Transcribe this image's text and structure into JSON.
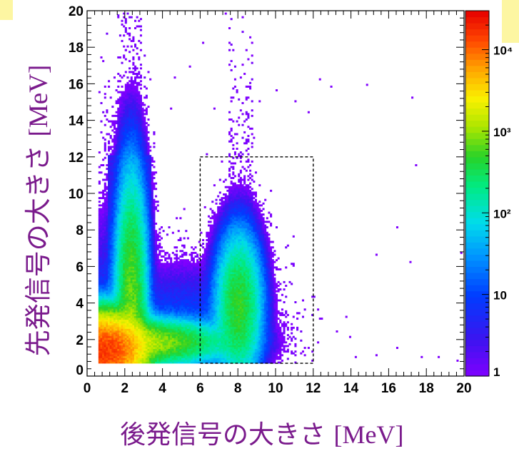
{
  "chart_data": {
    "type": "heatmap",
    "title": "",
    "xlabel_main": "後発信号の大きさ",
    "xlabel_unit": "[MeV]",
    "ylabel_main": "先発信号の大きさ",
    "ylabel_unit": "[MeV]",
    "xlim": [
      0,
      20
    ],
    "ylim": [
      0,
      20
    ],
    "x_ticks": [
      "0",
      "2",
      "4",
      "6",
      "8",
      "10",
      "12",
      "14",
      "16",
      "18",
      "20"
    ],
    "y_ticks": [
      "0",
      "2",
      "4",
      "6",
      "8",
      "10",
      "12",
      "14",
      "16",
      "18",
      "20"
    ],
    "z_scale": "log",
    "z_range": [
      1,
      30000
    ],
    "colorbar_ticks": [
      "1",
      "10",
      "10²",
      "10³",
      "10⁴"
    ],
    "colorbar_tick_values": [
      1,
      10,
      100,
      1000,
      10000
    ],
    "selection_box": {
      "x": [
        6,
        12
      ],
      "y": [
        0.7,
        12
      ],
      "style": "dashed"
    },
    "data_min_y": 0.7,
    "clusters": [
      {
        "name": "low-energy corner",
        "x": 0.9,
        "y": 1.3,
        "sx": 0.9,
        "sy": 0.9,
        "peak": 15000
      },
      {
        "name": "horizontal band",
        "x": 2.6,
        "y": 1.8,
        "sx": 2.0,
        "sy": 0.55,
        "peak": 1200
      },
      {
        "name": "vertical band",
        "x": 2.3,
        "y": 4.0,
        "sx": 0.38,
        "sy": 3.2,
        "peak": 700
      },
      {
        "name": "8 MeV peak",
        "x": 8.0,
        "y": 3.8,
        "sx": 0.55,
        "sy": 1.8,
        "peak": 500
      },
      {
        "name": "bridge",
        "x": 5.0,
        "y": 2.2,
        "sx": 2.0,
        "sy": 1.8,
        "peak": 12
      }
    ],
    "scattered_points": [
      [
        7.3,
        19.8
      ],
      [
        8.2,
        19.6
      ],
      [
        8.6,
        18.5
      ],
      [
        2.0,
        17.8
      ],
      [
        1.9,
        19.8
      ],
      [
        12.3,
        16.2
      ],
      [
        12.9,
        15.8
      ],
      [
        14.8,
        15.9
      ],
      [
        17.2,
        15.2
      ],
      [
        11.0,
        15.0
      ],
      [
        11.7,
        14.4
      ],
      [
        17.4,
        11.5
      ],
      [
        16.4,
        8.1
      ],
      [
        19.8,
        6.7
      ],
      [
        15.3,
        6.6
      ],
      [
        17.1,
        6.2
      ],
      [
        12.2,
        3.6
      ],
      [
        13.9,
        2.1
      ],
      [
        14.2,
        1.0
      ],
      [
        15.3,
        1.1
      ],
      [
        16.4,
        1.5
      ],
      [
        17.7,
        1.0
      ],
      [
        18.6,
        1.0
      ],
      [
        19.6,
        0.8
      ],
      [
        13.2,
        2.4
      ],
      [
        5.4,
        16.9
      ],
      [
        4.6,
        16.3
      ],
      [
        6.1,
        18.2
      ],
      [
        9.1,
        15.0
      ],
      [
        10.0,
        15.6
      ],
      [
        4.4,
        14.6
      ],
      [
        7.8,
        15.8
      ],
      [
        6.7,
        14.6
      ],
      [
        8.8,
        13.0
      ]
    ],
    "colors": {
      "axis": "#000000",
      "box": "#000000",
      "label": "#7a1a8c"
    }
  }
}
